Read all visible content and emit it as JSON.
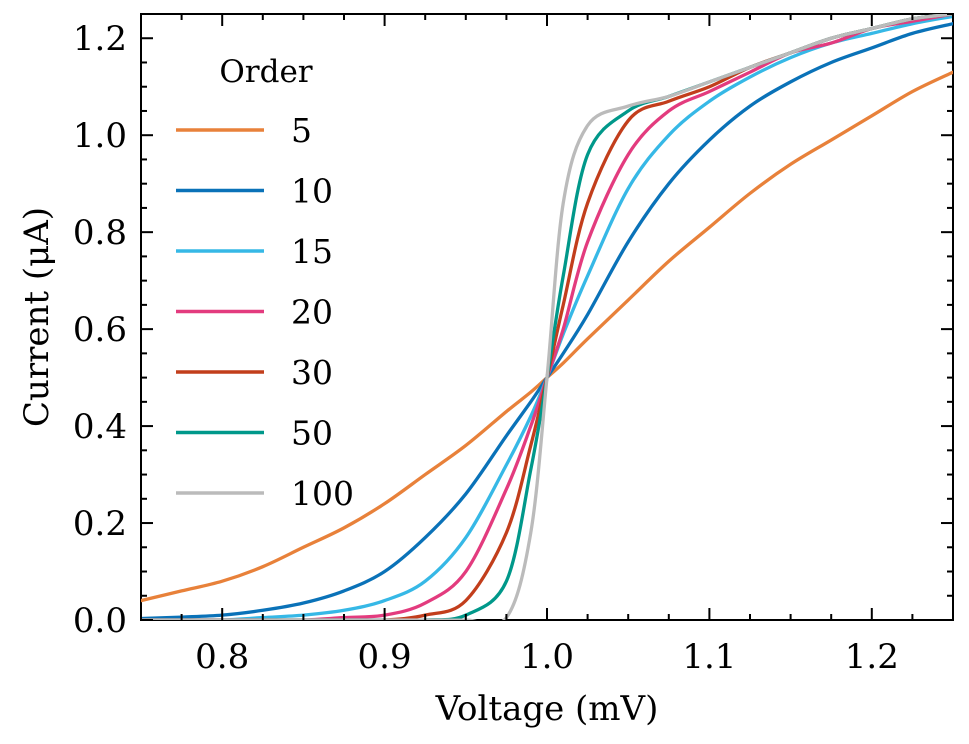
{
  "chart_data": {
    "type": "line",
    "title": "",
    "xlabel": "Voltage (mV)",
    "ylabel": "Current (μA)",
    "xlim": [
      0.75,
      1.25
    ],
    "ylim": [
      0.0,
      1.25
    ],
    "xticks": [
      0.8,
      0.9,
      1.0,
      1.1,
      1.2
    ],
    "xtick_labels": [
      "0.8",
      "0.9",
      "1.0",
      "1.1",
      "1.2"
    ],
    "yticks": [
      0.0,
      0.2,
      0.4,
      0.6,
      0.8,
      1.0,
      1.2
    ],
    "ytick_labels": [
      "0.0",
      "0.2",
      "0.4",
      "0.6",
      "0.8",
      "1.0",
      "1.2"
    ],
    "grid": false,
    "legend": {
      "title": "Order",
      "placement": "top-left"
    },
    "x": [
      0.75,
      0.775,
      0.8,
      0.825,
      0.85,
      0.875,
      0.9,
      0.925,
      0.95,
      0.975,
      0.99,
      1.0,
      1.01,
      1.025,
      1.05,
      1.075,
      1.1,
      1.125,
      1.15,
      1.175,
      1.2,
      1.225,
      1.25
    ],
    "series": [
      {
        "name": "5",
        "color": "#E8813A",
        "values": [
          0.04,
          0.06,
          0.08,
          0.11,
          0.15,
          0.19,
          0.24,
          0.3,
          0.36,
          0.43,
          0.47,
          0.5,
          0.53,
          0.58,
          0.66,
          0.74,
          0.81,
          0.88,
          0.94,
          0.99,
          1.04,
          1.09,
          1.13
        ]
      },
      {
        "name": "10",
        "color": "#0A72B8",
        "values": [
          0.003,
          0.006,
          0.01,
          0.02,
          0.035,
          0.06,
          0.1,
          0.17,
          0.26,
          0.38,
          0.45,
          0.5,
          0.55,
          0.63,
          0.78,
          0.9,
          0.99,
          1.06,
          1.11,
          1.15,
          1.18,
          1.21,
          1.23
        ]
      },
      {
        "name": "15",
        "color": "#36B8E6",
        "values": [
          0.0,
          0.0,
          0.0,
          0.005,
          0.01,
          0.02,
          0.04,
          0.08,
          0.17,
          0.32,
          0.42,
          0.5,
          0.59,
          0.71,
          0.89,
          1.0,
          1.07,
          1.12,
          1.16,
          1.19,
          1.21,
          1.23,
          1.245
        ]
      },
      {
        "name": "20",
        "color": "#E33B7E",
        "values": [
          0.0,
          0.0,
          0.0,
          0.0,
          0.0,
          0.005,
          0.01,
          0.035,
          0.1,
          0.27,
          0.4,
          0.5,
          0.6,
          0.78,
          0.96,
          1.05,
          1.09,
          1.13,
          1.17,
          1.19,
          1.22,
          1.235,
          1.25
        ]
      },
      {
        "name": "30",
        "color": "#C23E1C",
        "values": [
          0.0,
          0.0,
          0.0,
          0.0,
          0.0,
          0.0,
          0.0,
          0.01,
          0.04,
          0.18,
          0.36,
          0.5,
          0.65,
          0.86,
          1.03,
          1.07,
          1.1,
          1.14,
          1.17,
          1.2,
          1.22,
          1.24,
          1.25
        ]
      },
      {
        "name": "50",
        "color": "#00988A",
        "values": [
          0.0,
          0.0,
          0.0,
          0.0,
          0.0,
          0.0,
          0.0,
          0.0,
          0.01,
          0.08,
          0.31,
          0.5,
          0.71,
          0.96,
          1.05,
          1.08,
          1.11,
          1.14,
          1.17,
          1.2,
          1.22,
          1.24,
          1.25
        ]
      },
      {
        "name": "100",
        "color": "#BBBBBB",
        "values": [
          0.0,
          0.0,
          0.0,
          0.0,
          0.0,
          0.0,
          0.0,
          0.0,
          0.0,
          0.005,
          0.18,
          0.5,
          0.86,
          1.02,
          1.06,
          1.08,
          1.11,
          1.14,
          1.17,
          1.2,
          1.22,
          1.24,
          1.25
        ]
      }
    ]
  }
}
